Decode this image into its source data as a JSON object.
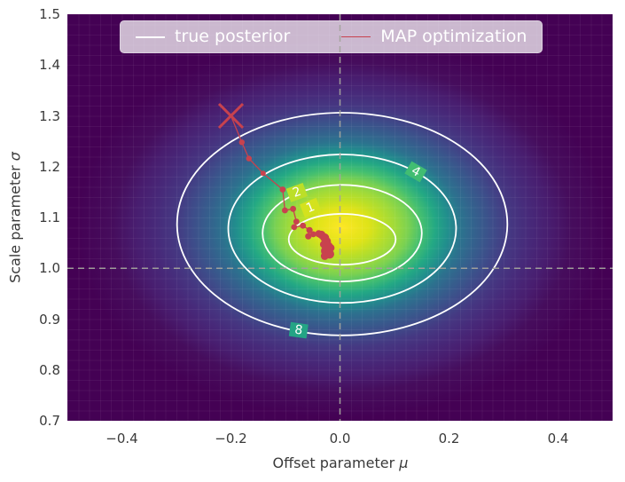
{
  "figure": {
    "background": "#ffffff"
  },
  "legend": {
    "background": "rgba(255,255,255,0.72)",
    "entries": [
      {
        "label": "true posterior",
        "color": "#ffffff",
        "line_width": 2.6
      },
      {
        "label": "MAP optimization",
        "color": "#c8424e",
        "line_width": 1.6
      }
    ]
  },
  "chart_data": {
    "type": "heatmap",
    "subtype": "2d-posterior-density-with-contours-and-optimization-path",
    "xlabel_text": "Offset parameter ",
    "xlabel_symbol": "μ",
    "ylabel_text": "Scale parameter ",
    "ylabel_symbol": "σ",
    "xlim": [
      -0.5,
      0.5
    ],
    "ylim": [
      0.7,
      1.5
    ],
    "xticks": {
      "values": [
        -0.4,
        -0.2,
        0.0,
        0.2,
        0.4
      ],
      "labels": [
        "−0.4",
        "−0.2",
        "0.0",
        "0.2",
        "0.4"
      ]
    },
    "yticks": {
      "values": [
        0.7,
        0.8,
        0.9,
        1.0,
        1.1,
        1.2,
        1.3,
        1.4,
        1.5
      ],
      "labels": [
        "0.7",
        "0.8",
        "0.9",
        "1.0",
        "1.1",
        "1.2",
        "1.3",
        "1.4",
        "1.5"
      ]
    },
    "crosshair": {
      "x": 0.0,
      "y": 1.0,
      "color": "#a3a39c",
      "style": "dashed"
    },
    "heatmap": {
      "colormap": "viridis",
      "background": "#440154",
      "center": {
        "x": 0.004,
        "y": 1.081
      },
      "radius_x": 0.488,
      "radius_y": 0.376,
      "stops": [
        {
          "pos": 0.0,
          "color": "#fde725"
        },
        {
          "pos": 0.1,
          "color": "#dfe318"
        },
        {
          "pos": 0.15,
          "color": "#bddf26"
        },
        {
          "pos": 0.2,
          "color": "#9fda3a"
        },
        {
          "pos": 0.25,
          "color": "#7ad151"
        },
        {
          "pos": 0.3,
          "color": "#44bf70"
        },
        {
          "pos": 0.35,
          "color": "#23a884"
        },
        {
          "pos": 0.4,
          "color": "#218e8d"
        },
        {
          "pos": 0.45,
          "color": "#2c728e"
        },
        {
          "pos": 0.5,
          "color": "#34618d"
        },
        {
          "pos": 0.56,
          "color": "#3d4e8a"
        },
        {
          "pos": 0.63,
          "color": "#453882"
        },
        {
          "pos": 0.7,
          "color": "#472a7a"
        },
        {
          "pos": 0.78,
          "color": "#481d6f"
        },
        {
          "pos": 0.86,
          "color": "#460d5d"
        },
        {
          "pos": 1.0,
          "color": "#440154"
        }
      ]
    },
    "contours": {
      "color": "#ffffff",
      "line_width": 1.8,
      "levels": [
        {
          "label": "8",
          "cx": 0.004,
          "cy": 1.087,
          "rx": 0.303,
          "ry": 0.219,
          "label_x": -0.076,
          "label_y": 0.878,
          "label_rotation": 8,
          "label_bg": "#24a485"
        },
        {
          "label": "4",
          "cx": 0.004,
          "cy": 1.078,
          "rx": 0.209,
          "ry": 0.146,
          "label_x": 0.139,
          "label_y": 1.19,
          "label_rotation": 30,
          "label_bg": "#41bd72"
        },
        {
          "label": "2",
          "cx": 0.004,
          "cy": 1.069,
          "rx": 0.146,
          "ry": 0.095,
          "label_x": -0.079,
          "label_y": 1.149,
          "label_rotation": -20,
          "label_bg": "#bcdf28"
        },
        {
          "label": "1",
          "cx": 0.004,
          "cy": 1.057,
          "rx": 0.098,
          "ry": 0.05,
          "label_x": -0.054,
          "label_y": 1.119,
          "label_rotation": -22,
          "label_bg": "#d4e21e"
        }
      ]
    },
    "map_trajectory": {
      "color": "#c8424e",
      "line_width": 1.3,
      "start": {
        "x": -0.2,
        "y": 1.3,
        "marker": "x",
        "half_size": 13.5,
        "stroke_width": 3
      },
      "points": [
        [
          -0.18,
          1.248,
          3.2
        ],
        [
          -0.167,
          1.216,
          3.2
        ],
        [
          -0.141,
          1.187,
          3.0
        ],
        [
          -0.105,
          1.155,
          3.4
        ],
        [
          -0.101,
          1.114,
          3.4
        ],
        [
          -0.086,
          1.117,
          3.4
        ],
        [
          -0.08,
          1.092,
          3.4
        ],
        [
          -0.084,
          1.081,
          3.4
        ],
        [
          -0.068,
          1.084,
          3.4
        ],
        [
          -0.056,
          1.075,
          3.6
        ],
        [
          -0.058,
          1.063,
          3.6
        ],
        [
          -0.049,
          1.067,
          3.4
        ],
        [
          -0.039,
          1.068,
          4.0
        ],
        [
          -0.034,
          1.066,
          4.6
        ],
        [
          -0.028,
          1.06,
          5.0
        ],
        [
          -0.024,
          1.053,
          4.6
        ],
        [
          -0.03,
          1.047,
          4.2
        ],
        [
          -0.022,
          1.043,
          5.4
        ],
        [
          -0.025,
          1.034,
          6.0
        ],
        [
          -0.019,
          1.028,
          5.2
        ],
        [
          -0.028,
          1.024,
          4.4
        ],
        [
          -0.017,
          1.04,
          4.4
        ]
      ]
    }
  }
}
